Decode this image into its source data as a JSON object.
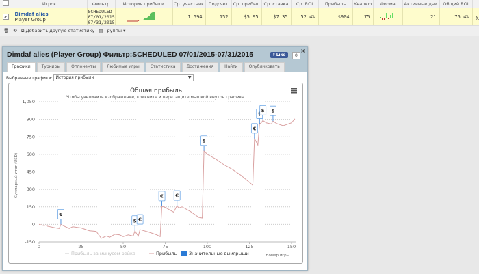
{
  "table": {
    "headers": [
      "",
      "Игрок",
      "Фильтр",
      "История прибыли",
      "Ср. участник",
      "Подсчет",
      "Ср. прибыл",
      "Ср. ставка",
      "Ср. ROI",
      "Прибыль",
      "Квалиф",
      "Форма",
      "Активные дни",
      "Общий ROI",
      ""
    ],
    "row": {
      "checked": true,
      "player": "Dimdaf alies",
      "player_sub": "Player Group",
      "filter": [
        "SCHEDULED",
        "07/01/2015",
        "07/31/2015"
      ],
      "avg_entrants": "1,594",
      "count": "152",
      "avg_profit": "$5.95",
      "avg_stake": "$7.35",
      "avg_roi": "52.4%",
      "profit": "$904",
      "itm": "75",
      "active_days": "21",
      "total_roi": "75.4%",
      "link": "y"
    }
  },
  "toolbar": {
    "add_stat": "Добавить другую статистику",
    "groups": "Группы"
  },
  "dialog": {
    "title": "Dimdaf alies (Player Group) Фильтр:SCHEDULED 07/01/2015-07/31/2015",
    "like": "Like",
    "like_count": "0",
    "close": "×",
    "tabs": [
      "Графики",
      "Турниры",
      "Оппоненты",
      "Любимые игры",
      "Статистика",
      "Достижения",
      "Найти",
      "Опубликовать"
    ],
    "selected_label": "Выбранные графики:",
    "selected_value": "История прибыли"
  },
  "chart_data": {
    "type": "line",
    "title": "Общая прибыль",
    "subtitle": "Чтобы увеличить изображение, кликните и перетащите мышкой внутрь графика.",
    "ylabel": "Суммарный итог (USD)",
    "xlabel": "Номер игры",
    "xlim": [
      0,
      152
    ],
    "ylim": [
      -150,
      1050
    ],
    "xticks": [
      0,
      25,
      50,
      75,
      100,
      125,
      150
    ],
    "yticks": [
      -150,
      0,
      150,
      300,
      450,
      600,
      750,
      900,
      1050
    ],
    "ytick_labels": [
      "-150",
      "0",
      "150",
      "300",
      "450",
      "600",
      "750",
      "900",
      "1,050"
    ],
    "grid": true,
    "legend": [
      "Прибыль за минусом рейка",
      "Прибыль",
      "Значительные выигрыши"
    ],
    "legend_position": "bottom",
    "colors": {
      "profit": "#d9a0a0",
      "rake": "#cccccc",
      "wins": "#2b7bd6"
    },
    "series": [
      {
        "name": "Прибыль",
        "x": [
          0,
          3,
          4,
          5,
          10,
          12,
          13,
          15,
          18,
          20,
          25,
          30,
          34,
          37,
          40,
          42,
          45,
          48,
          50,
          53,
          56,
          57,
          58,
          59,
          60,
          65,
          70,
          72,
          73,
          75,
          80,
          82,
          83,
          85,
          90,
          95,
          97,
          98,
          100,
          105,
          110,
          115,
          120,
          125,
          127,
          128,
          130,
          131,
          132,
          133,
          135,
          138,
          139,
          141,
          145,
          147,
          150,
          152
        ],
        "y": [
          0,
          -10,
          -5,
          -15,
          -30,
          -35,
          0,
          -15,
          -35,
          -20,
          -30,
          -55,
          -60,
          -120,
          -100,
          -110,
          -85,
          -90,
          -105,
          -90,
          -100,
          -55,
          -80,
          -100,
          -45,
          -65,
          -90,
          -105,
          155,
          145,
          105,
          160,
          140,
          150,
          110,
          60,
          55,
          630,
          600,
          560,
          510,
          470,
          420,
          360,
          335,
          735,
          680,
          860,
          870,
          890,
          870,
          860,
          885,
          865,
          845,
          855,
          870,
          905
        ]
      }
    ],
    "big_wins": [
      {
        "x": 13,
        "y": 0,
        "sym": "€"
      },
      {
        "x": 57,
        "y": -55,
        "sym": "$"
      },
      {
        "x": 60,
        "y": -45,
        "sym": "€"
      },
      {
        "x": 73,
        "y": 155,
        "sym": "€"
      },
      {
        "x": 82,
        "y": 160,
        "sym": "€"
      },
      {
        "x": 98,
        "y": 630,
        "sym": "$"
      },
      {
        "x": 128,
        "y": 735,
        "sym": "€"
      },
      {
        "x": 131,
        "y": 860,
        "sym": "$"
      },
      {
        "x": 133,
        "y": 890,
        "sym": "$"
      },
      {
        "x": 139,
        "y": 885,
        "sym": "$"
      }
    ]
  }
}
